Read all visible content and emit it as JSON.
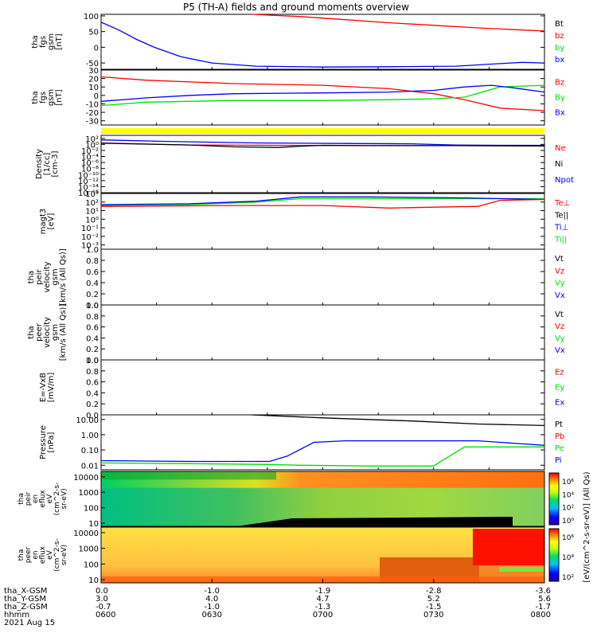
{
  "chart_data": {
    "type": "line",
    "title": "P5 (TH-A) fields and ground moments overview",
    "colors": {
      "black": "#000000",
      "red": "#ff0000",
      "green": "#00e000",
      "blue": "#0000ff",
      "yellow": "#ffff00"
    },
    "panels": [
      {
        "id": "fgs-gsm",
        "ylabel": [
          "tha",
          "fgs",
          "gsm",
          "[nT]"
        ],
        "log": false,
        "ylim": [
          -70,
          105
        ],
        "ticks": [
          "100",
          "50",
          "0",
          "-50"
        ],
        "tickvals": [
          100,
          50,
          0,
          -50
        ],
        "legend": [
          {
            "label": "Bt",
            "color": "black"
          },
          {
            "label": "bz",
            "color": "red"
          },
          {
            "label": "by",
            "color": "green"
          },
          {
            "label": "bx",
            "color": "blue"
          }
        ],
        "series": [
          {
            "name": "bz",
            "color": "red",
            "x": [
              0.34,
              0.45,
              0.55,
              0.65,
              0.75,
              0.85,
              0.95,
              1.0
            ],
            "y": [
              105,
              98,
              88,
              78,
              70,
              62,
              55,
              52
            ]
          },
          {
            "name": "bx",
            "color": "blue",
            "x": [
              0.0,
              0.04,
              0.08,
              0.12,
              0.18,
              0.25,
              0.35,
              0.5,
              0.65,
              0.8,
              0.9,
              0.95,
              1.0
            ],
            "y": [
              80,
              55,
              25,
              0,
              -30,
              -50,
              -60,
              -63,
              -62,
              -60,
              -52,
              -48,
              -50
            ]
          }
        ]
      },
      {
        "id": "fgs-gsm-zoom",
        "ylabel": [
          "tha",
          "fgs",
          "gsm",
          "[nT]"
        ],
        "log": false,
        "ylim": [
          -35,
          30
        ],
        "ticks": [
          "30",
          "20",
          "10",
          "0",
          "-10",
          "-20",
          "-30"
        ],
        "tickvals": [
          30,
          20,
          10,
          0,
          -10,
          -20,
          -30
        ],
        "legend": [
          {
            "label": "Bz",
            "color": "red"
          },
          {
            "label": "By",
            "color": "green"
          },
          {
            "label": "Bx",
            "color": "blue"
          }
        ],
        "series": [
          {
            "name": "Bz",
            "color": "red",
            "x": [
              0.0,
              0.1,
              0.3,
              0.5,
              0.65,
              0.75,
              0.82,
              0.9,
              1.0
            ],
            "y": [
              22,
              18,
              14,
              12,
              8,
              2,
              -5,
              -15,
              -18
            ]
          },
          {
            "name": "By",
            "color": "green",
            "x": [
              0.0,
              0.1,
              0.3,
              0.5,
              0.65,
              0.75,
              0.82,
              0.9,
              1.0
            ],
            "y": [
              -12,
              -8,
              -6,
              -6,
              -5,
              -4,
              -2,
              10,
              12
            ]
          },
          {
            "name": "Bx",
            "color": "blue",
            "x": [
              0.0,
              0.1,
              0.2,
              0.3,
              0.5,
              0.65,
              0.75,
              0.82,
              0.88,
              0.93,
              1.0
            ],
            "y": [
              -7,
              -3,
              0,
              2,
              3,
              4,
              6,
              10,
              12,
              9,
              4
            ]
          }
        ]
      },
      {
        "id": "density",
        "ylabel": [
          "Density",
          "[1/cc]",
          "[cm-3]"
        ],
        "log": true,
        "ylim": [
          -16,
          3
        ],
        "ticks": [
          "10²",
          "10⁰",
          "10⁻²",
          "10⁻⁴",
          "10⁻⁶",
          "10⁻⁸",
          "10⁻¹⁰",
          "10⁻¹²",
          "10⁻¹⁴",
          "10⁻¹⁶"
        ],
        "tickvals": [
          2,
          0,
          -2,
          -4,
          -6,
          -8,
          -10,
          -12,
          -14,
          -16
        ],
        "legend": [
          {
            "label": "Ne",
            "color": "red"
          },
          {
            "label": "Ni",
            "color": "black"
          },
          {
            "label": "Npot",
            "color": "blue"
          }
        ],
        "series": [
          {
            "name": "Npot",
            "color": "blue",
            "x": [
              0.0,
              0.15,
              0.35,
              0.55,
              0.7,
              0.8,
              0.9,
              1.0
            ],
            "y": [
              1.5,
              1.0,
              0.5,
              0.3,
              0.2,
              -0.2,
              -0.3,
              -0.3
            ]
          },
          {
            "name": "Ne",
            "color": "red",
            "x": [
              0.0,
              0.2,
              0.4,
              0.6,
              0.8,
              1.0
            ],
            "y": [
              0.5,
              -0.2,
              -0.3,
              -0.4,
              -0.4,
              -0.5
            ]
          },
          {
            "name": "Ni",
            "color": "black",
            "x": [
              0.0,
              0.2,
              0.3,
              0.4,
              0.45,
              0.5,
              0.6,
              0.8,
              1.0
            ],
            "y": [
              0.4,
              -0.2,
              -0.8,
              -1.0,
              -0.6,
              -0.3,
              -0.4,
              -0.4,
              -0.5
            ]
          }
        ]
      },
      {
        "id": "temperature",
        "ylabel": [
          "magt3",
          "[eV]"
        ],
        "log": true,
        "ylim": [
          -3.5,
          3
        ],
        "ticks": [
          "10³",
          "10²",
          "10¹",
          "10⁰",
          "10⁻¹",
          "10⁻²",
          "10⁻³"
        ],
        "tickvals": [
          3,
          2,
          1,
          0,
          -1,
          -2,
          -3
        ],
        "legend": [
          {
            "label": "Te⊥",
            "color": "red"
          },
          {
            "label": "Te||",
            "color": "black"
          },
          {
            "label": "Ti⊥",
            "color": "blue"
          },
          {
            "label": "Ti||",
            "color": "green"
          }
        ],
        "series": [
          {
            "name": "Ti||",
            "color": "green",
            "x": [
              0.0,
              0.2,
              0.35,
              0.45,
              0.6,
              0.8,
              1.0
            ],
            "y": [
              1.6,
              1.7,
              2.0,
              2.4,
              2.4,
              2.4,
              2.4
            ]
          },
          {
            "name": "Ti⊥",
            "color": "blue",
            "x": [
              0.0,
              0.2,
              0.35,
              0.45,
              0.6,
              0.8,
              1.0
            ],
            "y": [
              1.7,
              1.8,
              2.1,
              2.6,
              2.6,
              2.5,
              2.3
            ]
          },
          {
            "name": "Te⊥",
            "color": "red",
            "x": [
              0.0,
              0.3,
              0.5,
              0.65,
              0.75,
              0.85,
              0.9,
              1.0
            ],
            "y": [
              1.5,
              1.6,
              1.6,
              1.3,
              1.4,
              1.5,
              2.2,
              2.3
            ]
          }
        ]
      },
      {
        "id": "peir-velocity",
        "ylabel": [
          "tha",
          "peir",
          "velocity",
          "gsm",
          "[km/s (All Qs)]"
        ],
        "log": false,
        "ylim": [
          0,
          1
        ],
        "ticks": [
          "1.0",
          "0.8",
          "0.6",
          "0.4",
          "0.2",
          "0.0"
        ],
        "tickvals": [
          1,
          0.8,
          0.6,
          0.4,
          0.2,
          0
        ],
        "legend": [
          {
            "label": "Vt",
            "color": "black"
          },
          {
            "label": "Vz",
            "color": "red"
          },
          {
            "label": "Vy",
            "color": "green"
          },
          {
            "label": "Vx",
            "color": "blue"
          }
        ],
        "series": []
      },
      {
        "id": "peer-velocity",
        "ylabel": [
          "tha",
          "peer",
          "velocity",
          "gsm",
          "[km/s (All Qs)]"
        ],
        "log": false,
        "ylim": [
          0,
          1
        ],
        "ticks": [
          "1.0",
          "0.8",
          "0.6",
          "0.4",
          "0.2",
          "0.0"
        ],
        "tickvals": [
          1,
          0.8,
          0.6,
          0.4,
          0.2,
          0
        ],
        "legend": [
          {
            "label": "Vt",
            "color": "black"
          },
          {
            "label": "Vz",
            "color": "red"
          },
          {
            "label": "Vy",
            "color": "green"
          },
          {
            "label": "Vx",
            "color": "blue"
          }
        ],
        "series": []
      },
      {
        "id": "e-field",
        "ylabel": [
          "E=-VxB",
          "[mV/m]"
        ],
        "log": false,
        "ylim": [
          0,
          1
        ],
        "ticks": [
          "1.0",
          "0.8",
          "0.6",
          "0.4",
          "0.2",
          "0.0"
        ],
        "tickvals": [
          1,
          0.8,
          0.6,
          0.4,
          0.2,
          0
        ],
        "legend": [
          {
            "label": "Ez",
            "color": "red"
          },
          {
            "label": "Ey",
            "color": "green"
          },
          {
            "label": "Ex",
            "color": "blue"
          }
        ],
        "series": []
      },
      {
        "id": "pressure",
        "ylabel": [
          "Pressure",
          "[nPa]"
        ],
        "log": true,
        "ylim": [
          -2.3,
          1.3
        ],
        "ticks": [
          "10.00",
          "1.00",
          "0.10",
          "0.01"
        ],
        "tickvals": [
          1,
          0,
          -1,
          -2
        ],
        "legend": [
          {
            "label": "Pt",
            "color": "black"
          },
          {
            "label": "Pb",
            "color": "red"
          },
          {
            "label": "Pe",
            "color": "green"
          },
          {
            "label": "Pi",
            "color": "blue"
          }
        ],
        "series": [
          {
            "name": "Pt",
            "color": "black",
            "x": [
              0.34,
              0.5,
              0.7,
              0.85,
              1.0
            ],
            "y": [
              1.3,
              1.1,
              0.9,
              0.7,
              0.6
            ]
          },
          {
            "name": "Pi",
            "color": "blue",
            "x": [
              0.0,
              0.2,
              0.38,
              0.42,
              0.48,
              0.55,
              0.7,
              0.85,
              0.95,
              1.0
            ],
            "y": [
              -1.7,
              -1.75,
              -1.75,
              -1.4,
              -0.5,
              -0.4,
              -0.4,
              -0.4,
              -0.6,
              -0.7
            ]
          },
          {
            "name": "Pe",
            "color": "green",
            "x": [
              0.0,
              0.2,
              0.38,
              0.45,
              0.6,
              0.75,
              0.78,
              0.82,
              0.9,
              1.0
            ],
            "y": [
              -1.85,
              -1.9,
              -1.95,
              -2.0,
              -2.05,
              -2.05,
              -1.5,
              -0.8,
              -0.8,
              -0.8
            ]
          }
        ]
      }
    ],
    "spectrograms": [
      {
        "id": "peir-eflux",
        "ylabel": [
          "tha",
          "peir",
          "en",
          "eflux",
          "eV",
          "(cm^2-s-",
          "sr-eV)"
        ],
        "ylim_log": [
          0.8,
          4.35
        ],
        "ticks": [
          "10000",
          "1000",
          "100",
          "10"
        ],
        "tickvals": [
          4,
          3,
          2,
          1
        ],
        "colorbar_ticks": [
          "10⁶",
          "10⁴",
          "10²",
          "10⁰"
        ]
      },
      {
        "id": "peer-eflux",
        "ylabel": [
          "tha",
          "peer",
          "en",
          "eflux",
          "eV",
          "(cm^2-s-",
          "sr-eV)"
        ],
        "ylim_log": [
          0.8,
          4.35
        ],
        "ticks": [
          "10000",
          "1000",
          "100",
          "10"
        ],
        "tickvals": [
          4,
          3,
          2,
          1
        ],
        "colorbar_ticks": [
          "10⁶",
          "10⁴",
          "10²"
        ]
      }
    ],
    "colorbar_label": "[eV/(cm^2-s-sr-eV)] (All Qs)",
    "x_axis": {
      "row_labels": [
        "tha_X-GSM",
        "tha_Y-GSM",
        "tha_Z-GSM",
        "hhmm",
        "2021 Aug 15"
      ],
      "ticks": [
        {
          "pos": 0.0,
          "x": "0.0",
          "y": "3.0",
          "z": "-0.7",
          "t": "0600"
        },
        {
          "pos": 0.25,
          "x": "-1.0",
          "y": "4.0",
          "z": "-1.0",
          "t": "0630"
        },
        {
          "pos": 0.5,
          "x": "-1.9",
          "y": "4.7",
          "z": "-1.3",
          "t": "0700"
        },
        {
          "pos": 0.75,
          "x": "-2.8",
          "y": "5.2",
          "z": "-1.5",
          "t": "0730"
        },
        {
          "pos": 1.0,
          "x": "-3.6",
          "y": "5.6",
          "z": "-1.7",
          "t": "0800"
        }
      ]
    }
  }
}
